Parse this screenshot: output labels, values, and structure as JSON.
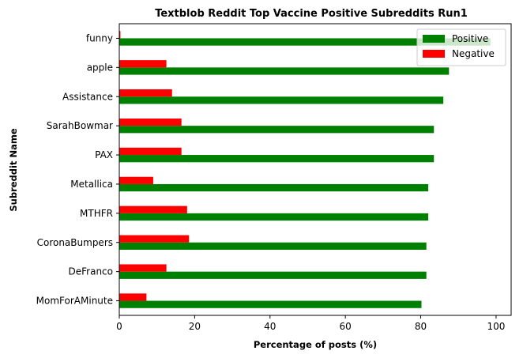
{
  "chart_data": {
    "type": "bar",
    "orientation": "horizontal",
    "title": "Textblob Reddit Top Vaccine Positive Subreddits Run1",
    "xlabel": "Percentage of posts (%)",
    "ylabel": "Subreddit Name",
    "categories": [
      "funny",
      "apple",
      "Assistance",
      "SarahBowmar",
      "PAX",
      "Metallica",
      "MTHFR",
      "CoronaBumpers",
      "DeFranco",
      "MomForAMinute"
    ],
    "series": [
      {
        "name": "Positive",
        "color": "#008000",
        "values": [
          98.5,
          87.5,
          86.0,
          83.5,
          83.5,
          82.0,
          82.0,
          81.5,
          81.5,
          80.2
        ]
      },
      {
        "name": "Negative",
        "color": "#ff0000",
        "values": [
          0.3,
          12.5,
          14.0,
          16.5,
          16.5,
          9.0,
          18.0,
          18.5,
          12.5,
          7.2
        ]
      }
    ],
    "xlim": [
      0,
      104
    ],
    "xticks": [
      "0",
      "20",
      "40",
      "60",
      "80",
      "100"
    ],
    "grid": false,
    "legend_position": "top-right"
  }
}
